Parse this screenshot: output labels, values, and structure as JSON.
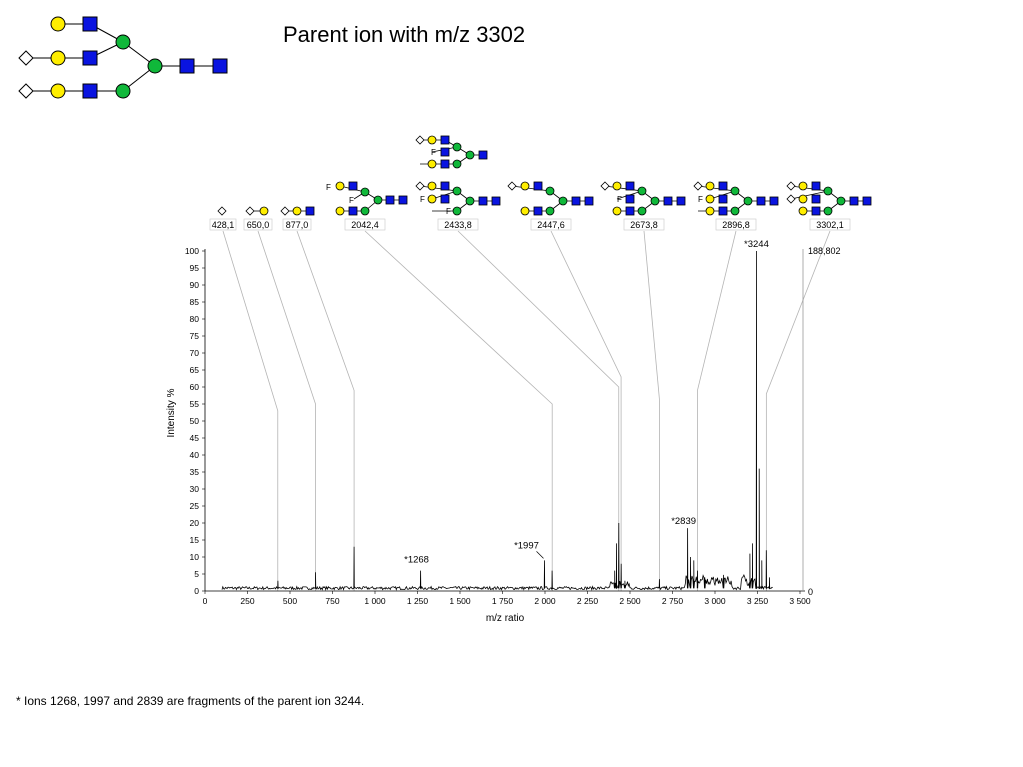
{
  "title": "Parent ion with m/z 3302",
  "footnote": "* Ions 1268, 1997 and 2839 are fragments of the parent ion 3244.",
  "colors": {
    "galactose": "#ffee00",
    "glcnac": "#0a14e0",
    "mannose": "#10b83a",
    "sialic_acid": "#ffffff",
    "fucose": "#ffffff",
    "spectrum": "#000000",
    "leader": "#b4b4b4"
  },
  "glycan_legend": {
    "parent_structure": "tri-antennary glycan with two sialic acids",
    "icons": [
      "yellow-circle galactose",
      "blue-square glcnac",
      "green-circle mannose",
      "diamond sialic-acid",
      "F fucose"
    ]
  },
  "fragment_labels": [
    "428,1",
    "650,0",
    "877,0",
    "2042,4",
    "2433,8",
    "2447,6",
    "2673,8",
    "2896,8",
    "3302,1"
  ],
  "right_axis": {
    "top_label": "188,802",
    "bottom_label": "0"
  },
  "chart_data": {
    "type": "line",
    "title": "",
    "xlabel": "m/z ratio",
    "ylabel": "Intensity %",
    "xlim": [
      0,
      3500
    ],
    "ylim": [
      0,
      100
    ],
    "xticks": [
      0,
      250,
      500,
      750,
      1000,
      1250,
      1500,
      1750,
      2000,
      2250,
      2500,
      2750,
      3000,
      3250,
      3500
    ],
    "xtick_labels": [
      "0",
      "250",
      "500",
      "750",
      "1 000",
      "1 250",
      "1 500",
      "1 750",
      "2 000",
      "2 250",
      "2 500",
      "2 750",
      "3 000",
      "3 250",
      "3 500"
    ],
    "yticks": [
      0,
      5,
      10,
      15,
      20,
      25,
      30,
      35,
      40,
      45,
      50,
      55,
      60,
      65,
      70,
      75,
      80,
      85,
      90,
      95,
      100
    ],
    "baseline_range": [
      100,
      3340
    ],
    "peaks": [
      {
        "x": 429,
        "y": 3
      },
      {
        "x": 650,
        "y": 5.5
      },
      {
        "x": 877,
        "y": 13
      },
      {
        "x": 1268,
        "y": 6
      },
      {
        "x": 1997,
        "y": 9
      },
      {
        "x": 2042,
        "y": 6
      },
      {
        "x": 2410,
        "y": 6
      },
      {
        "x": 2420,
        "y": 14
      },
      {
        "x": 2434,
        "y": 20
      },
      {
        "x": 2448,
        "y": 8
      },
      {
        "x": 2470,
        "y": 3
      },
      {
        "x": 2673,
        "y": 3.5
      },
      {
        "x": 2839,
        "y": 18.5
      },
      {
        "x": 2856,
        "y": 10
      },
      {
        "x": 2875,
        "y": 9
      },
      {
        "x": 2897,
        "y": 6
      },
      {
        "x": 2940,
        "y": 4
      },
      {
        "x": 3050,
        "y": 4
      },
      {
        "x": 3205,
        "y": 11
      },
      {
        "x": 3220,
        "y": 14
      },
      {
        "x": 3244,
        "y": 100
      },
      {
        "x": 3260,
        "y": 36
      },
      {
        "x": 3275,
        "y": 9
      },
      {
        "x": 3302,
        "y": 12
      },
      {
        "x": 3320,
        "y": 4
      }
    ],
    "annotations": [
      {
        "text": "*3244",
        "x": 3244,
        "y": 100
      },
      {
        "text": "*2839",
        "x": 2839,
        "y": 18.5
      },
      {
        "text": "*1997",
        "x": 1997,
        "y": 9
      },
      {
        "text": "*1268",
        "x": 1268,
        "y": 6
      }
    ],
    "fragment_markers": [
      {
        "label": "428,1",
        "x": 428.1,
        "y": 53
      },
      {
        "label": "650,0",
        "x": 650.0,
        "y": 55
      },
      {
        "label": "877,0",
        "x": 877.0,
        "y": 59
      },
      {
        "label": "2042,4",
        "x": 2042.4,
        "y": 55
      },
      {
        "label": "2433,8",
        "x": 2433.8,
        "y": 60
      },
      {
        "label": "2447,6",
        "x": 2447.6,
        "y": 63
      },
      {
        "label": "2673,8",
        "x": 2673.8,
        "y": 56
      },
      {
        "label": "2896,8",
        "x": 2896.8,
        "y": 59
      },
      {
        "label": "3302,1",
        "x": 3302.1,
        "y": 58
      }
    ]
  }
}
